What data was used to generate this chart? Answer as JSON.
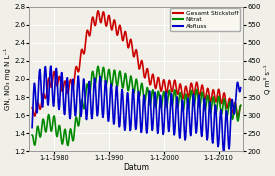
{
  "xlabel": "Datum",
  "ylabel_left": "GN, NO₃ mg N L⁻¹",
  "ylabel_right": "Q m³ s⁻¹",
  "ylim_left": [
    1.2,
    2.8
  ],
  "ylim_right": [
    200,
    600
  ],
  "xtick_labels": [
    "1-1-1980",
    "1-1-1990",
    "1-1-2000",
    "1-1-2010"
  ],
  "xtick_years": [
    1980,
    1990,
    2000,
    2010
  ],
  "legend": [
    {
      "label": "Gesamt Stickstoff",
      "color": "#cc0000"
    },
    {
      "label": "Nitrat",
      "color": "#008800"
    },
    {
      "label": "Abfluss",
      "color": "#0000cc"
    }
  ],
  "background_color": "#f0f0e8",
  "grid_color": "#ffffff",
  "line_width": 1.2,
  "xstart": 1976.0,
  "xend": 2014.0,
  "red_trend": [
    1.62,
    1.68,
    1.78,
    1.95,
    2.02,
    1.95,
    1.9,
    1.93,
    2.1,
    2.3,
    2.52,
    2.65,
    2.7,
    2.66,
    2.62,
    2.56,
    2.5,
    2.42,
    2.32,
    2.18,
    2.08,
    2.0,
    1.96,
    1.93,
    1.91,
    1.93,
    1.89,
    1.84,
    1.88,
    1.9,
    1.87,
    1.83,
    1.81,
    1.82,
    1.78,
    1.72,
    1.67,
    1.63
  ],
  "red_amp": [
    0.06,
    0.06,
    0.06,
    0.07,
    0.07,
    0.07,
    0.07,
    0.07,
    0.07,
    0.07,
    0.07,
    0.07,
    0.07,
    0.07,
    0.07,
    0.07,
    0.07,
    0.07,
    0.07,
    0.07,
    0.07,
    0.07,
    0.07,
    0.07,
    0.07,
    0.07,
    0.07,
    0.07,
    0.07,
    0.07,
    0.07,
    0.07,
    0.07,
    0.07,
    0.07,
    0.07,
    0.07,
    0.07
  ],
  "green_trend": [
    1.3,
    1.4,
    1.48,
    1.52,
    1.5,
    1.38,
    1.35,
    1.36,
    1.52,
    1.72,
    1.9,
    2.03,
    2.06,
    2.03,
    2.01,
    2.01,
    1.99,
    1.96,
    1.93,
    1.89,
    1.83,
    1.8,
    1.78,
    1.77,
    1.78,
    1.8,
    1.77,
    1.73,
    1.78,
    1.8,
    1.77,
    1.73,
    1.71,
    1.72,
    1.69,
    1.66,
    1.63,
    1.62
  ],
  "green_amp": [
    0.08,
    0.08,
    0.08,
    0.09,
    0.09,
    0.09,
    0.09,
    0.09,
    0.09,
    0.09,
    0.09,
    0.09,
    0.09,
    0.09,
    0.09,
    0.09,
    0.09,
    0.09,
    0.09,
    0.09,
    0.09,
    0.09,
    0.09,
    0.09,
    0.09,
    0.09,
    0.09,
    0.09,
    0.09,
    0.09,
    0.09,
    0.09,
    0.09,
    0.09,
    0.09,
    0.09,
    0.09,
    0.09
  ],
  "blue_trend": [
    310,
    368,
    378,
    383,
    378,
    368,
    352,
    342,
    356,
    348,
    338,
    348,
    354,
    342,
    332,
    326,
    316,
    307,
    318,
    310,
    300,
    315,
    307,
    298,
    312,
    302,
    293,
    284,
    297,
    306,
    297,
    287,
    278,
    268,
    252,
    262,
    345,
    392
  ],
  "blue_amp": [
    55,
    55,
    55,
    55,
    55,
    55,
    55,
    55,
    55,
    55,
    55,
    55,
    55,
    55,
    55,
    55,
    55,
    55,
    55,
    55,
    55,
    55,
    55,
    55,
    55,
    55,
    55,
    55,
    55,
    55,
    55,
    55,
    55,
    55,
    55,
    55,
    30,
    20
  ]
}
